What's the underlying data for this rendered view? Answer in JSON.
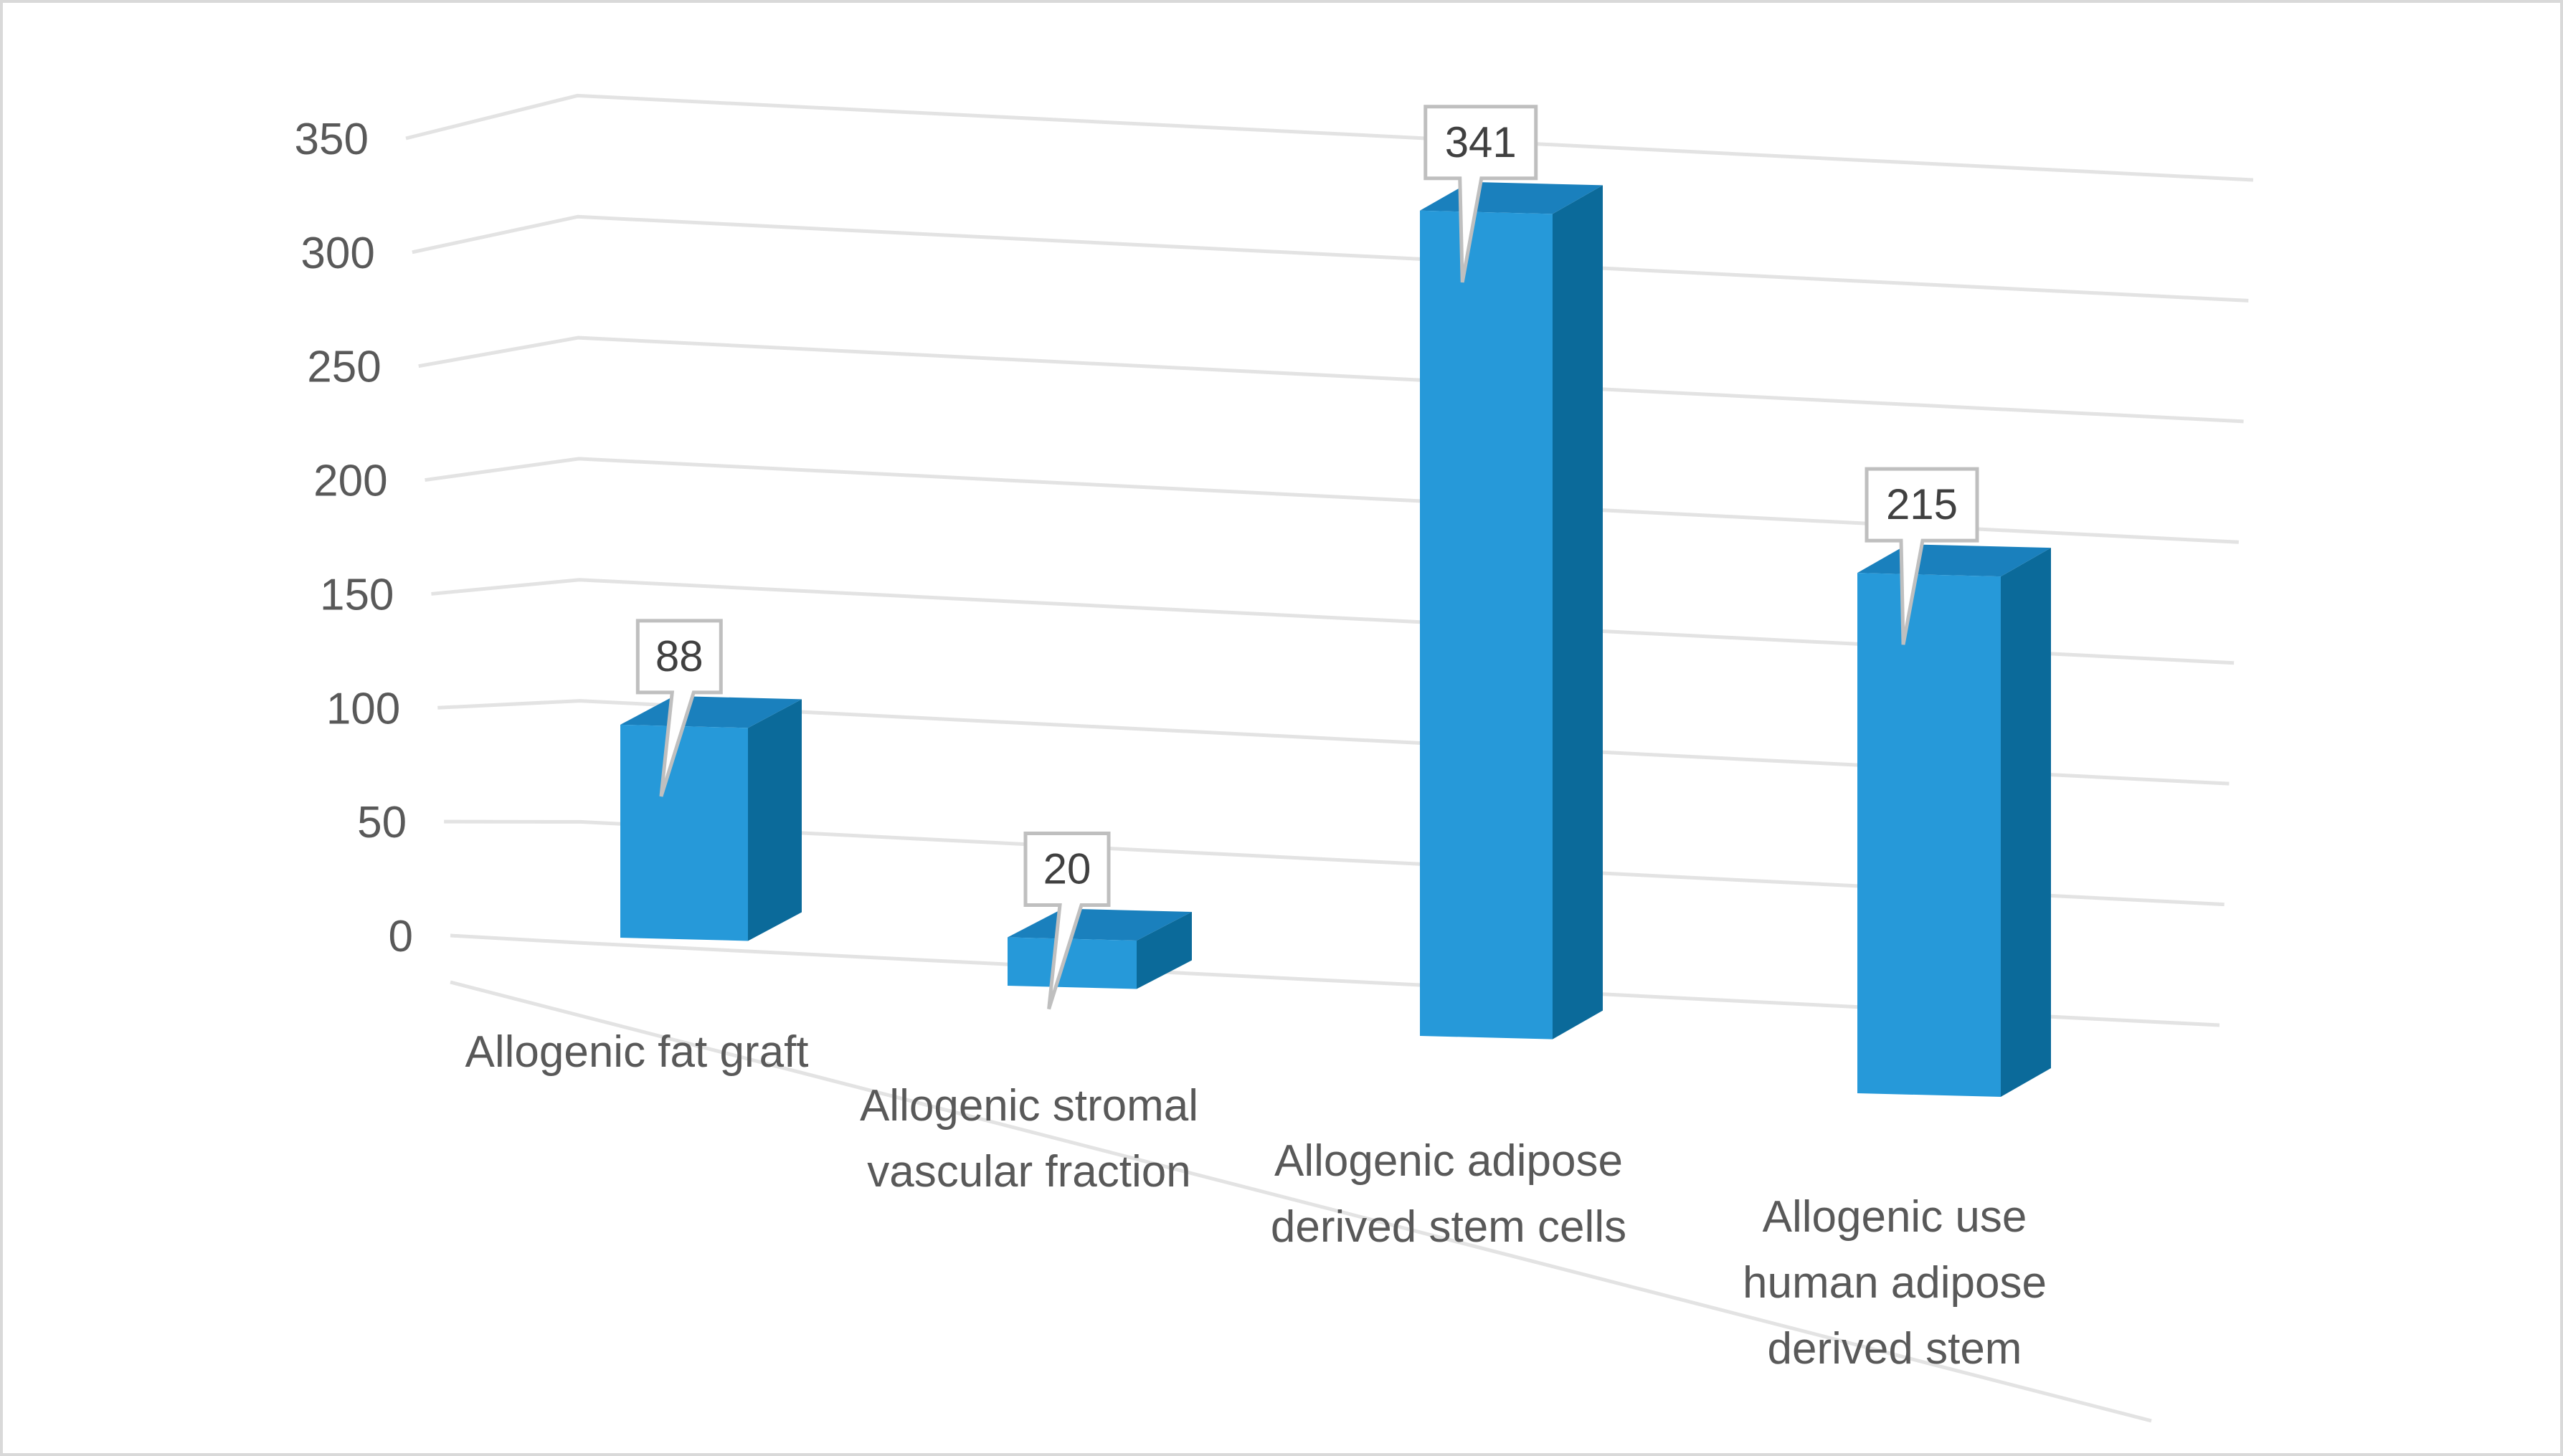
{
  "chart_data": {
    "type": "bar",
    "style": "3d-column",
    "categories": [
      [
        "Allogenic fat graft"
      ],
      [
        "Allogenic stromal",
        "vascular fraction"
      ],
      [
        "Allogenic adipose",
        "derived stem cells"
      ],
      [
        "Allogenic use",
        "human adipose",
        "derived stem"
      ]
    ],
    "values": [
      88,
      20,
      341,
      215
    ],
    "data_labels": [
      "88",
      "20",
      "341",
      "215"
    ],
    "y_ticks": [
      "0",
      "50",
      "100",
      "150",
      "200",
      "250",
      "300",
      "350"
    ],
    "ylim": [
      0,
      350
    ],
    "grid": true,
    "legend": "none",
    "title": "",
    "xlabel": "",
    "ylabel": "",
    "colors": {
      "bar_front": "#2699d9",
      "bar_side": "#0b6a9a",
      "bar_top": "#1a80bd",
      "gridline": "#e3e3e3",
      "frame": "#d9d9d9",
      "text": "#595959",
      "callout_border": "#bfbfbf"
    }
  }
}
